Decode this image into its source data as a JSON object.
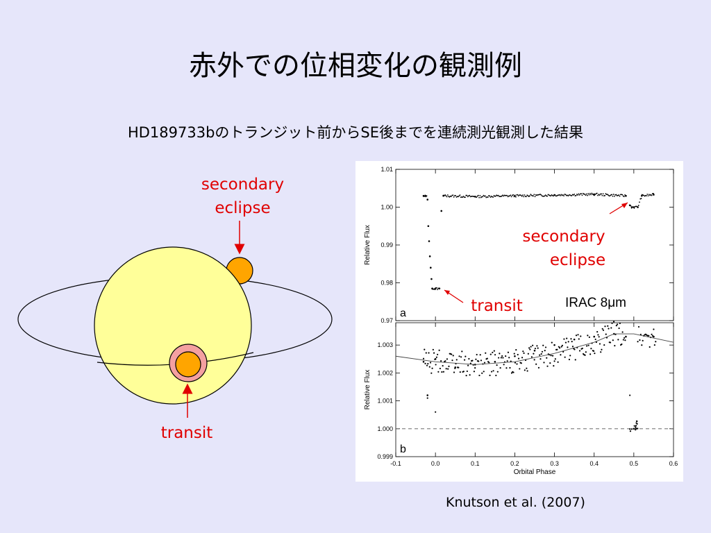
{
  "slide": {
    "title": "赤外での位相変化の観測例",
    "subtitle": "HD189733bのトランジット前からSE後までを連続測光観測した結果",
    "credit": "Knutson et al. (2007)"
  },
  "diagram": {
    "secondary_label_line1": "secondary",
    "secondary_label_line2": "eclipse",
    "transit_label": "transit",
    "colors": {
      "star_fill": "#ffff99",
      "planet_fill": "#ffa500",
      "transit_ring": "#f4a0a0",
      "arrow": "#e00000"
    }
  },
  "plot_annotations": {
    "secondary_line1": "secondary",
    "secondary_line2": "eclipse",
    "transit": "transit",
    "instrument": "IRAC 8μm"
  },
  "chart_data": [
    {
      "type": "scatter",
      "panel_label": "a",
      "ylabel": "Relative Flux",
      "xlim": [
        -0.1,
        0.6
      ],
      "ylim": [
        0.97,
        1.01
      ],
      "yticks": [
        "0.97",
        "0.98",
        "0.99",
        "1.00",
        "1.01"
      ],
      "series": [
        {
          "x": [
            -0.03,
            -0.025,
            -0.02,
            -0.018,
            -0.016,
            -0.014,
            -0.012,
            -0.01,
            -0.008,
            0.0,
            0.01,
            0.015,
            0.02,
            0.1,
            0.2,
            0.3,
            0.4,
            0.48,
            0.49,
            0.495,
            0.5,
            0.51,
            0.52,
            0.55
          ],
          "y": [
            1.003,
            1.003,
            1.002,
            0.995,
            0.991,
            0.987,
            0.984,
            0.981,
            0.9785,
            0.9785,
            0.9785,
            0.999,
            1.003,
            1.0028,
            1.003,
            1.0032,
            1.0034,
            1.003,
            1.0005,
            1.0,
            1.0,
            1.0,
            1.003,
            1.0033
          ]
        }
      ]
    },
    {
      "type": "scatter",
      "panel_label": "b",
      "xlabel": "Orbital Phase",
      "ylabel": "Relative Flux",
      "xlim": [
        -0.1,
        0.6
      ],
      "ylim": [
        0.999,
        1.0038
      ],
      "xticks": [
        "-0.1",
        "0.0",
        "0.1",
        "0.2",
        "0.3",
        "0.4",
        "0.5",
        "0.6"
      ],
      "yticks": [
        "0.999",
        "1.000",
        "1.001",
        "1.002",
        "1.003"
      ],
      "reference_line": 1.0,
      "series": [
        {
          "x": [
            -0.03,
            -0.02,
            0.0,
            0.05,
            0.1,
            0.15,
            0.2,
            0.25,
            0.3,
            0.35,
            0.4,
            0.45,
            0.48,
            0.5,
            0.55
          ],
          "y": [
            1.0024,
            1.0012,
            1.0025,
            1.0022,
            1.0023,
            1.0024,
            1.0026,
            1.0028,
            1.003,
            1.0032,
            1.0033,
            1.0034,
            1.0033,
            1.0,
            1.0033
          ]
        },
        {
          "x": [
            -0.1,
            0.0,
            0.1,
            0.2,
            0.3,
            0.4,
            0.45,
            0.5,
            0.6
          ],
          "y": [
            1.0026,
            1.0024,
            1.0023,
            1.0024,
            1.0027,
            1.0031,
            1.0034,
            1.0034,
            1.0031
          ]
        }
      ]
    }
  ]
}
